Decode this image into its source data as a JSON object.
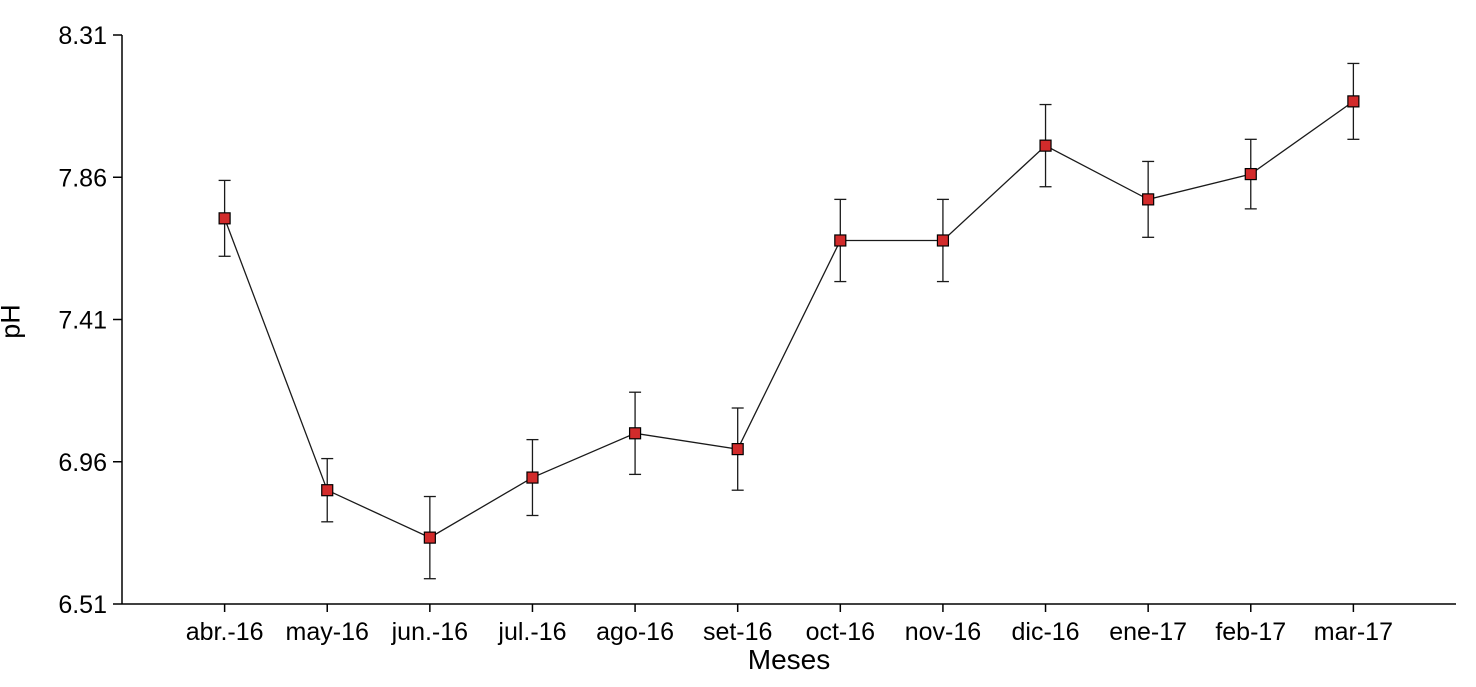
{
  "chart_data": {
    "type": "line",
    "title": "",
    "xlabel": "Meses",
    "ylabel": "pH",
    "categories": [
      "abr.-16",
      "may-16",
      "jun.-16",
      "jul.-16",
      "ago-16",
      "set-16",
      "oct-16",
      "nov-16",
      "dic-16",
      "ene-17",
      "feb-17",
      "mar-17"
    ],
    "series": [
      {
        "name": "pH",
        "values": [
          7.73,
          6.87,
          6.72,
          6.91,
          7.05,
          7.0,
          7.66,
          7.66,
          7.96,
          7.79,
          7.87,
          8.1
        ],
        "errors": [
          0.12,
          0.1,
          0.13,
          0.12,
          0.13,
          0.13,
          0.13,
          0.13,
          0.13,
          0.12,
          0.11,
          0.12
        ]
      }
    ],
    "ylim": [
      6.51,
      8.31
    ],
    "yticks": [
      6.51,
      6.96,
      7.41,
      7.86,
      8.31
    ],
    "grid": false,
    "legend": "none",
    "marker": "square",
    "marker_color": "#d22b2b",
    "marker_edge_color": "#000000",
    "line_color": "#1a1a1a",
    "error_bar_color": "#1a1a1a",
    "axis_color": "#000000",
    "background": "#ffffff"
  }
}
